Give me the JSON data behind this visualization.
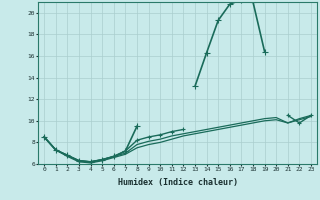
{
  "xlabel": "Humidex (Indice chaleur)",
  "background_color": "#c8eaea",
  "grid_color": "#aacece",
  "line_color": "#1a6b5a",
  "xlim": [
    -0.5,
    23.5
  ],
  "ylim": [
    6,
    21
  ],
  "yticks": [
    6,
    8,
    10,
    12,
    14,
    16,
    18,
    20
  ],
  "xticks": [
    0,
    1,
    2,
    3,
    4,
    5,
    6,
    7,
    8,
    9,
    10,
    11,
    12,
    13,
    14,
    15,
    16,
    17,
    18,
    19,
    20,
    21,
    22,
    23
  ],
  "series": [
    {
      "x": [
        0,
        1,
        2,
        3,
        4,
        5,
        6,
        7,
        8,
        9,
        10,
        11,
        12,
        13,
        14,
        15,
        16,
        17,
        18,
        19,
        20,
        21,
        22,
        23
      ],
      "y": [
        8.5,
        7.3,
        6.8,
        6.3,
        6.2,
        6.4,
        6.7,
        7.2,
        9.5,
        null,
        null,
        null,
        null,
        13.2,
        16.3,
        19.3,
        20.8,
        21.2,
        21.0,
        16.4,
        null,
        null,
        null,
        null
      ],
      "marker": "+",
      "markersize": 4,
      "linewidth": 1.2
    },
    {
      "x": [
        0,
        1,
        2,
        3,
        4,
        5,
        6,
        7,
        8,
        9,
        10,
        11,
        12,
        13,
        14,
        15,
        16,
        17,
        18,
        19,
        20,
        21,
        22,
        23
      ],
      "y": [
        8.5,
        7.3,
        6.8,
        6.3,
        6.2,
        6.4,
        6.7,
        7.2,
        8.2,
        8.5,
        8.7,
        9.0,
        9.2,
        null,
        null,
        null,
        null,
        null,
        null,
        null,
        null,
        10.5,
        9.8,
        10.5
      ],
      "marker": "+",
      "markersize": 3,
      "linewidth": 1.0
    },
    {
      "x": [
        0,
        1,
        2,
        3,
        4,
        5,
        6,
        7,
        8,
        9,
        10,
        11,
        12,
        13,
        14,
        15,
        16,
        17,
        18,
        19,
        20,
        21,
        22,
        23
      ],
      "y": [
        8.5,
        7.3,
        6.8,
        6.3,
        6.2,
        6.4,
        6.7,
        7.0,
        7.8,
        8.1,
        8.3,
        8.6,
        8.8,
        9.0,
        9.2,
        9.4,
        9.6,
        9.8,
        10.0,
        10.2,
        10.3,
        9.8,
        10.2,
        10.5
      ],
      "marker": null,
      "markersize": 0,
      "linewidth": 0.9
    },
    {
      "x": [
        0,
        1,
        2,
        3,
        4,
        5,
        6,
        7,
        8,
        9,
        10,
        11,
        12,
        13,
        14,
        15,
        16,
        17,
        18,
        19,
        20,
        21,
        22,
        23
      ],
      "y": [
        8.5,
        7.3,
        6.7,
        6.2,
        6.1,
        6.3,
        6.6,
        6.9,
        7.5,
        7.8,
        8.0,
        8.3,
        8.6,
        8.8,
        9.0,
        9.2,
        9.4,
        9.6,
        9.8,
        10.0,
        10.1,
        9.8,
        10.1,
        10.4
      ],
      "marker": null,
      "markersize": 0,
      "linewidth": 0.9
    }
  ]
}
